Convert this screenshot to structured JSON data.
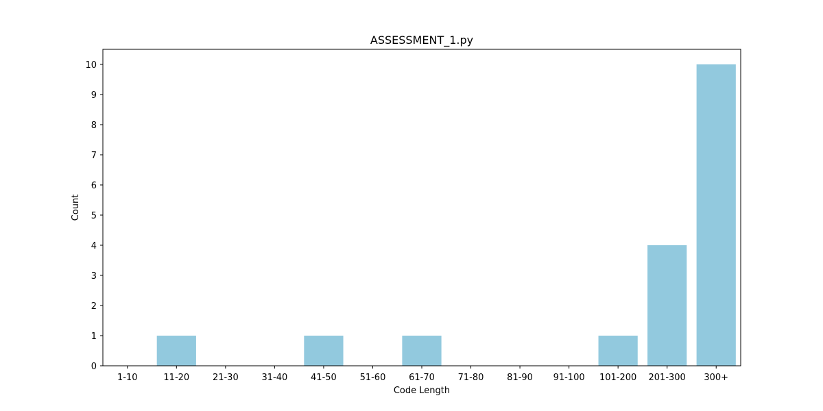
{
  "chart_data": {
    "type": "bar",
    "title": "ASSESSMENT_1.py",
    "xlabel": "Code Length",
    "ylabel": "Count",
    "categories": [
      "1-10",
      "11-20",
      "21-30",
      "31-40",
      "41-50",
      "51-60",
      "61-70",
      "71-80",
      "81-90",
      "91-100",
      "101-200",
      "201-300",
      "300+"
    ],
    "values": [
      0,
      1,
      0,
      0,
      1,
      0,
      1,
      0,
      0,
      0,
      1,
      4,
      10
    ],
    "ylim": [
      0,
      10.5
    ],
    "yticks": [
      0,
      1,
      2,
      3,
      4,
      5,
      6,
      7,
      8,
      9,
      10
    ],
    "bar_color": "#92c9de",
    "grid": false
  }
}
